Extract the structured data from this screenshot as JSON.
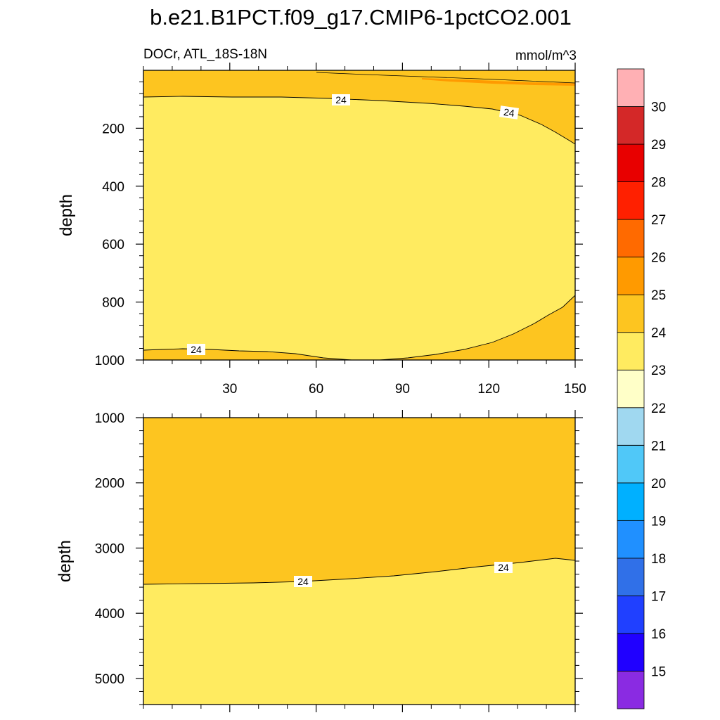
{
  "figure": {
    "title": "b.e21.B1PCT.f09_g17.CMIP6-1pctCO2.001",
    "left_string": "DOCr, ATL_18S-18N",
    "right_string": "mmol/m^3"
  },
  "colorbar": {
    "levels": [
      15,
      16,
      17,
      18,
      19,
      20,
      21,
      22,
      23,
      24,
      25,
      26,
      27,
      28,
      29,
      30
    ],
    "colors": [
      "#8a2be2",
      "#2000ff",
      "#2040ff",
      "#3070e8",
      "#2090ff",
      "#00b0ff",
      "#50c8f8",
      "#a0d8f0",
      "#ffffc8",
      "#ffeb60",
      "#fdc520",
      "#ff9a00",
      "#ff6a00",
      "#ff2000",
      "#e80000",
      "#d42828",
      "#ffb0b4"
    ]
  },
  "chart_data": [
    {
      "type": "contour",
      "panel": "upper",
      "xlabel": "",
      "ylabel": "depth",
      "xlim": [
        0,
        150
      ],
      "ylim": [
        1000,
        0
      ],
      "xticks": [
        30,
        60,
        90,
        120,
        150
      ],
      "yticks": [
        200,
        400,
        600,
        800,
        1000
      ],
      "contour_labels": [
        "24",
        "24",
        "24"
      ],
      "regions": [
        {
          "range": "24-25",
          "description": "upper layer from surface to ~90 m on the west, deepening to ~260 m at x=150"
        },
        {
          "range": "25-26",
          "description": "thin surface strip near 0-30 m, mostly east of x~60"
        },
        {
          "range": "23-24",
          "description": "interior from ~100 m to ~980 m"
        },
        {
          "range": "24-25",
          "description": "bottom layer below ~970 m, thickening east to ~780 m at x=150"
        }
      ]
    },
    {
      "type": "contour",
      "panel": "lower",
      "xlabel": "",
      "ylabel": "depth",
      "xlim": [
        0,
        150
      ],
      "ylim": [
        5400,
        1000
      ],
      "xticks": [
        30,
        60,
        90,
        120,
        150
      ],
      "yticks": [
        1000,
        2000,
        3000,
        4000,
        5000
      ],
      "contour_labels": [
        "24",
        "24"
      ],
      "regions": [
        {
          "range": "24-25",
          "description": "from 1000 m down to ~3530 m on the west and ~3170 m at x=150"
        },
        {
          "range": "23-24",
          "description": "below the 24 contour to the bottom"
        }
      ]
    }
  ]
}
